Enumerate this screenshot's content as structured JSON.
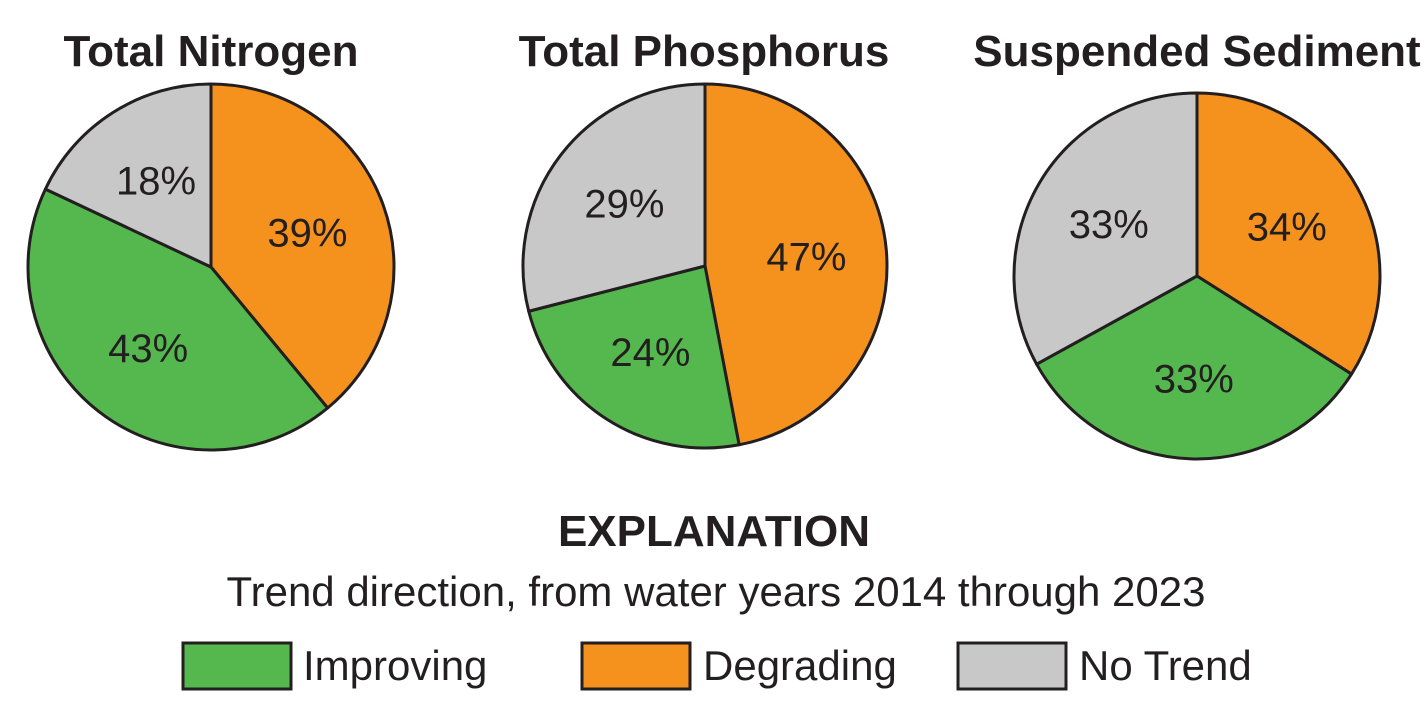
{
  "chart_data": {
    "type": "pie",
    "categories": [
      "Improving",
      "Degrading",
      "No Trend"
    ],
    "colors": {
      "Improving": "#55b84f",
      "Degrading": "#f5921e",
      "No Trend": "#c8c8c8",
      "stroke": "#231f20"
    },
    "charts": [
      {
        "title": "Total Nitrogen",
        "slices": [
          {
            "category": "Degrading",
            "value": 39,
            "label": "39%"
          },
          {
            "category": "Improving",
            "value": 43,
            "label": "43%"
          },
          {
            "category": "No Trend",
            "value": 18,
            "label": "18%"
          }
        ]
      },
      {
        "title": "Total Phosphorus",
        "slices": [
          {
            "category": "Degrading",
            "value": 47,
            "label": "47%"
          },
          {
            "category": "Improving",
            "value": 24,
            "label": "24%"
          },
          {
            "category": "No Trend",
            "value": 29,
            "label": "29%"
          }
        ]
      },
      {
        "title": "Suspended Sediment",
        "slices": [
          {
            "category": "Degrading",
            "value": 34,
            "label": "34%"
          },
          {
            "category": "Improving",
            "value": 33,
            "label": "33%"
          },
          {
            "category": "No Trend",
            "value": 33,
            "label": "33%"
          }
        ]
      }
    ],
    "legend": {
      "title": "EXPLANATION",
      "subtitle": "Trend direction, from water years 2014 through 2023",
      "items": [
        {
          "category": "Improving",
          "label": "Improving"
        },
        {
          "category": "Degrading",
          "label": "Degrading"
        },
        {
          "category": "No Trend",
          "label": "No Trend"
        }
      ]
    }
  }
}
